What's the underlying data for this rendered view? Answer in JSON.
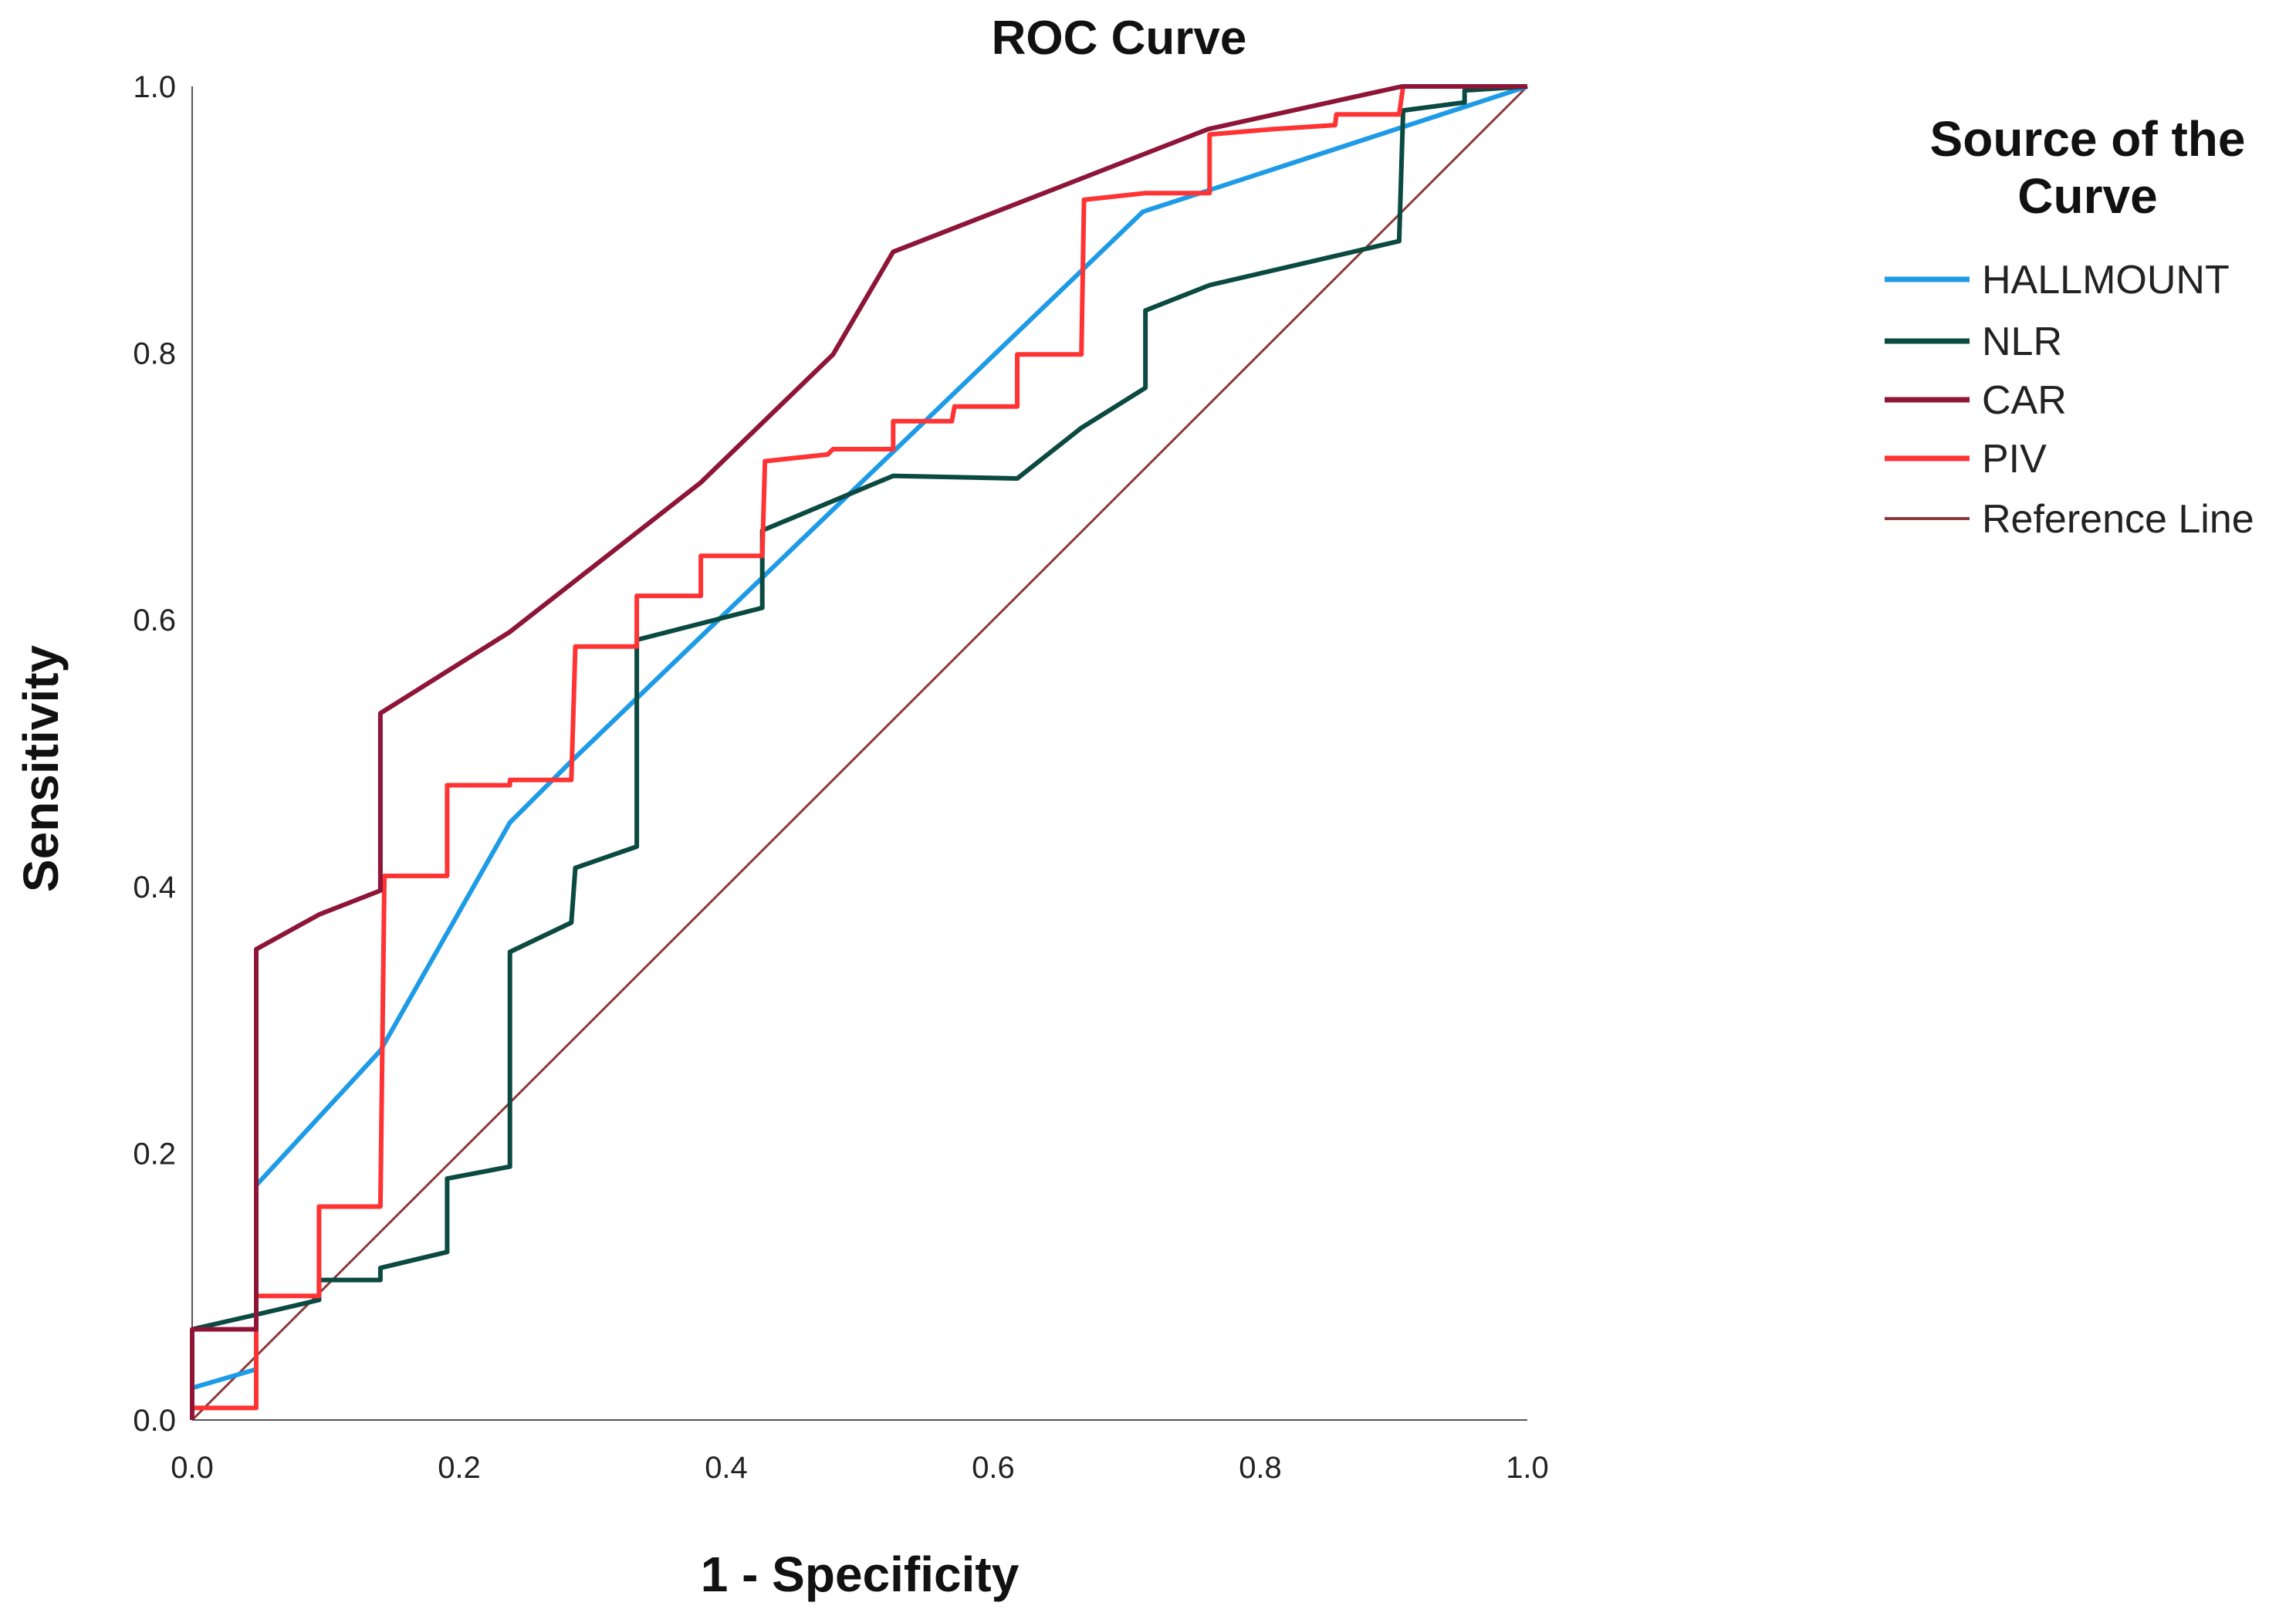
{
  "chart_data": {
    "type": "line",
    "title": "ROC Curve",
    "xlabel": "1 - Specificity",
    "ylabel": "Sensitivity",
    "xlim": [
      0,
      1
    ],
    "ylim": [
      0,
      1
    ],
    "xticks": [
      "0.0",
      "0.2",
      "0.4",
      "0.6",
      "0.8",
      "1.0"
    ],
    "yticks": [
      "0.0",
      "0.2",
      "0.4",
      "0.6",
      "0.8",
      "1.0"
    ],
    "grid": false,
    "legend": {
      "title": "Source of the Curve",
      "placement": "right"
    },
    "series": [
      {
        "name": "HALLMOUNT",
        "color": "#1e9be6",
        "points": [
          [
            0,
            0.024
          ],
          [
            0.048,
            0.038
          ],
          [
            0.048,
            0.176
          ],
          [
            0.141,
            0.277
          ],
          [
            0.238,
            0.448
          ],
          [
            0.284,
            0.494
          ],
          [
            0.712,
            0.906
          ],
          [
            0.761,
            0.922
          ],
          [
            1,
            1
          ]
        ]
      },
      {
        "name": "NLR",
        "color": "#0b4a40",
        "points": [
          [
            0,
            0.068
          ],
          [
            0.048,
            0.079
          ],
          [
            0.095,
            0.09
          ],
          [
            0.095,
            0.105
          ],
          [
            0.141,
            0.105
          ],
          [
            0.141,
            0.114
          ],
          [
            0.191,
            0.126
          ],
          [
            0.191,
            0.181
          ],
          [
            0.238,
            0.19
          ],
          [
            0.238,
            0.351
          ],
          [
            0.284,
            0.373
          ],
          [
            0.287,
            0.414
          ],
          [
            0.333,
            0.43
          ],
          [
            0.333,
            0.585
          ],
          [
            0.427,
            0.609
          ],
          [
            0.427,
            0.667
          ],
          [
            0.525,
            0.708
          ],
          [
            0.618,
            0.706
          ],
          [
            0.666,
            0.744
          ],
          [
            0.714,
            0.774
          ],
          [
            0.714,
            0.832
          ],
          [
            0.762,
            0.851
          ],
          [
            0.904,
            0.884
          ],
          [
            0.907,
            0.982
          ],
          [
            0.953,
            0.988
          ],
          [
            0.953,
            0.997
          ],
          [
            1,
            1
          ]
        ]
      },
      {
        "name": "CAR",
        "color": "#8e1538",
        "points": [
          [
            0,
            0
          ],
          [
            0,
            0.068
          ],
          [
            0.048,
            0.068
          ],
          [
            0.048,
            0.353
          ],
          [
            0.095,
            0.379
          ],
          [
            0.141,
            0.397
          ],
          [
            0.141,
            0.53
          ],
          [
            0.238,
            0.591
          ],
          [
            0.381,
            0.703
          ],
          [
            0.48,
            0.799
          ],
          [
            0.525,
            0.876
          ],
          [
            0.761,
            0.968
          ],
          [
            0.906,
            1
          ],
          [
            1,
            1
          ]
        ]
      },
      {
        "name": "PIV",
        "color": "#ff3333",
        "points": [
          [
            0,
            0.009
          ],
          [
            0.048,
            0.009
          ],
          [
            0.048,
            0.093
          ],
          [
            0.095,
            0.093
          ],
          [
            0.095,
            0.16
          ],
          [
            0.141,
            0.16
          ],
          [
            0.144,
            0.408
          ],
          [
            0.191,
            0.408
          ],
          [
            0.191,
            0.476
          ],
          [
            0.238,
            0.476
          ],
          [
            0.238,
            0.48
          ],
          [
            0.284,
            0.48
          ],
          [
            0.287,
            0.58
          ],
          [
            0.333,
            0.58
          ],
          [
            0.333,
            0.618
          ],
          [
            0.381,
            0.618
          ],
          [
            0.381,
            0.648
          ],
          [
            0.427,
            0.648
          ],
          [
            0.429,
            0.719
          ],
          [
            0.476,
            0.724
          ],
          [
            0.48,
            0.728
          ],
          [
            0.525,
            0.728
          ],
          [
            0.525,
            0.749
          ],
          [
            0.569,
            0.749
          ],
          [
            0.571,
            0.76
          ],
          [
            0.618,
            0.76
          ],
          [
            0.618,
            0.799
          ],
          [
            0.666,
            0.799
          ],
          [
            0.668,
            0.915
          ],
          [
            0.714,
            0.92
          ],
          [
            0.762,
            0.92
          ],
          [
            0.762,
            0.964
          ],
          [
            0.81,
            0.968
          ],
          [
            0.856,
            0.971
          ],
          [
            0.857,
            0.979
          ],
          [
            0.904,
            0.979
          ],
          [
            0.907,
            1
          ],
          [
            1,
            1
          ]
        ]
      },
      {
        "name": "Reference Line",
        "color": "#8b3a3a",
        "points": [
          [
            0,
            0
          ],
          [
            1,
            1
          ]
        ]
      }
    ]
  }
}
